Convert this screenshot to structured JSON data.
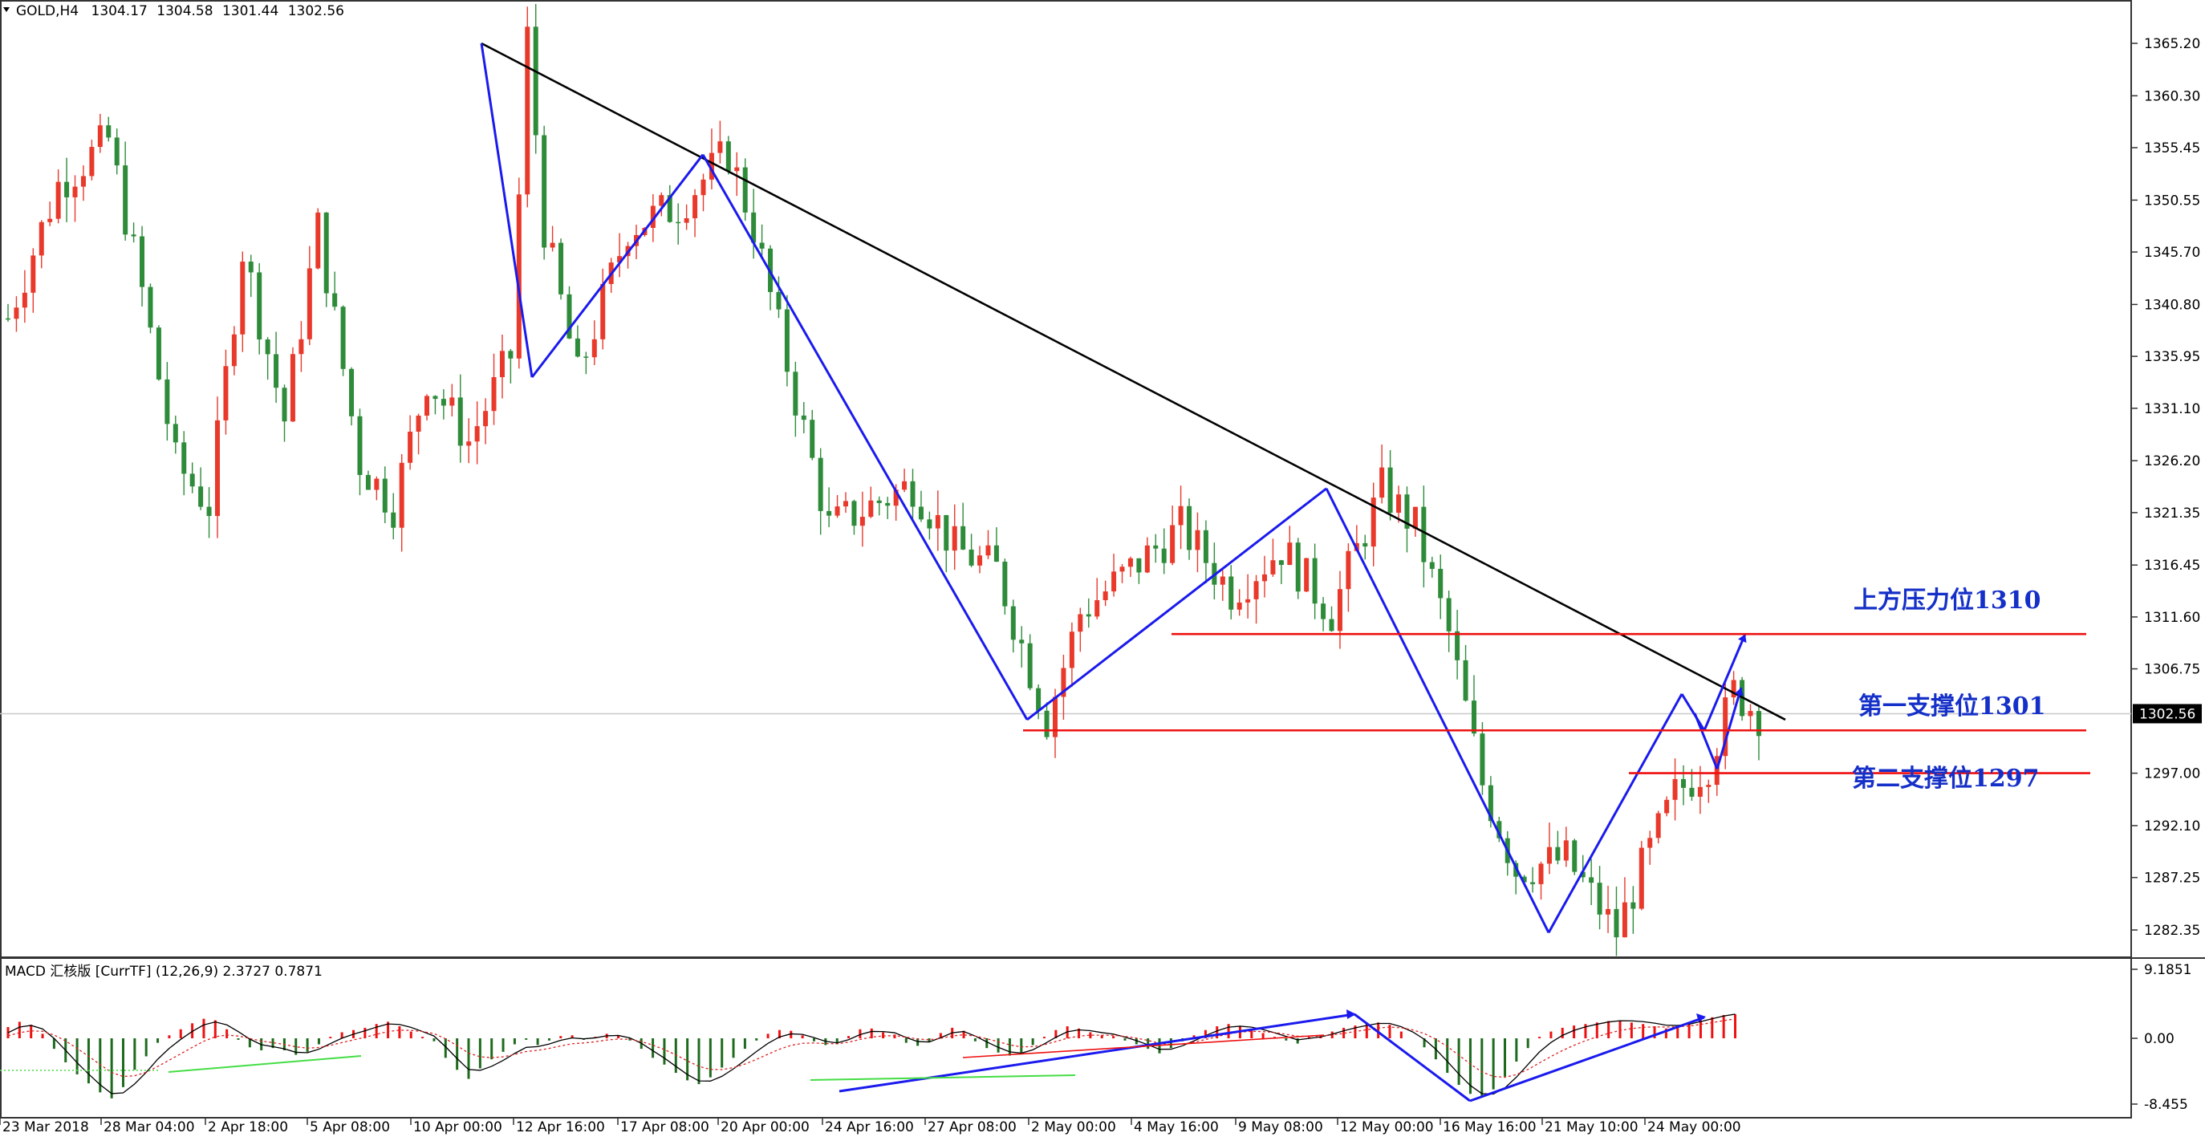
{
  "header": {
    "symbol": "GOLD,H4",
    "open": "1304.17",
    "high": "1304.58",
    "low": "1301.44",
    "close": "1302.56"
  },
  "macd": {
    "label": "MACD 汇核版 [CurrTF] (12,26,9) 2.3727 0.7871",
    "ticks": [
      "9.1851",
      "0.00",
      "-8.455"
    ]
  },
  "colors": {
    "bull": "#e8392b",
    "bear": "#2e8b3a",
    "trend_black": "#000000",
    "pattern_blue": "#1a1aee",
    "level_red": "#ee1111",
    "annotation_text": "#1530c8",
    "macd_up": "#ee1111",
    "macd_down": "#1e6b1e",
    "divergence_green": "#44dd44"
  },
  "chart_data": {
    "type": "candlestick",
    "price_axis": {
      "min": 1282.35,
      "max": 1365.2,
      "ticks": [
        "1365.20",
        "1360.30",
        "1355.45",
        "1350.55",
        "1345.70",
        "1340.80",
        "1335.95",
        "1331.10",
        "1326.20",
        "1321.35",
        "1316.45",
        "1311.60",
        "1306.75",
        "1297.00",
        "1292.10",
        "1287.25",
        "1282.35"
      ],
      "current_price_label": "1302.56",
      "current_price": 1302.56
    },
    "time_axis": {
      "labels": [
        "23 Mar 2018",
        "28 Mar 04:00",
        "2 Apr 18:00",
        "5 Apr 08:00",
        "10 Apr 00:00",
        "12 Apr 16:00",
        "17 Apr 08:00",
        "20 Apr 00:00",
        "24 Apr 16:00",
        "27 Apr 08:00",
        "2 May 00:00",
        "4 May 16:00",
        "9 May 08:00",
        "12 May 00:00",
        "16 May 16:00",
        "21 May 10:00",
        "24 May 00:00"
      ],
      "bars_total": 200
    },
    "key_prices": {
      "start": 1339.5,
      "mar_high": 1356.2,
      "apr11_peak": 1365.7,
      "apr12_low": 1334.0,
      "apr18_high": 1355.0,
      "may1_low": 1302.0,
      "may10_high": 1323.6,
      "may21_low": 1282.1,
      "may24_high": 1304.6,
      "last_close": 1302.56
    },
    "annotations": [
      {
        "text": "上方压力位1310",
        "price": 1310
      },
      {
        "text": "第一支撑位1301",
        "price": 1301
      },
      {
        "text": "第二支撑位1297",
        "price": 1297
      }
    ],
    "trendline": {
      "from_price": 1365.2,
      "to_price": 1302.0
    },
    "pattern_points": [
      1365.2,
      1334.0,
      1354.8,
      1302.0,
      1323.6,
      1282.1,
      1304.4,
      1301.0,
      1310.0
    ],
    "macd_values": [
      1.5,
      2.2,
      1.8,
      0.6,
      -1.4,
      -3.2,
      -4.8,
      -6.0,
      -7.2,
      -8.0,
      -6.5,
      -4.2,
      -2.4,
      -0.6,
      0.4,
      1.2,
      2.0,
      2.6,
      2.4,
      1.2,
      -0.2,
      -1.2,
      -1.6,
      -1.3,
      -1.6,
      -2.2,
      -1.8,
      -0.8,
      0.2,
      0.8,
      1.1,
      1.4,
      1.9,
      2.2,
      1.6,
      0.9,
      0.2,
      -0.4,
      -2.6,
      -4.2,
      -5.4,
      -4.0,
      -2.8,
      -1.8,
      -0.8,
      -0.2,
      -0.9,
      -0.3,
      0.3,
      0.4,
      -0.2,
      0.2,
      0.6,
      0.4,
      -0.3,
      -1.4,
      -2.6,
      -3.5,
      -4.6,
      -5.6,
      -6.1,
      -5.2,
      -3.9,
      -2.6,
      -1.4,
      -0.3,
      0.6,
      1.1,
      1.0,
      0.4,
      -0.4,
      -0.9,
      -0.8,
      0.3,
      1.2,
      1.3,
      0.8,
      0.5,
      -0.6,
      -1.0,
      -0.5,
      0.7,
      1.4,
      1.0,
      -0.4,
      -1.3,
      -1.9,
      -2.3,
      -2.0,
      -0.9,
      0.2,
      1.1,
      1.6,
      1.3,
      0.8,
      0.4,
      0.3,
      -0.3,
      -0.8,
      -1.4,
      -2.0,
      -1.3,
      -0.4,
      0.4,
      1.1,
      1.6,
      1.9,
      1.6,
      1.2,
      0.7,
      0.2,
      -0.3,
      -0.7,
      0.2,
      0.4,
      0.9,
      1.4,
      1.7,
      1.9,
      2.1,
      1.8,
      0.9,
      0.0,
      -1.2,
      -2.8,
      -4.6,
      -6.2,
      -7.4,
      -7.9,
      -6.8,
      -5.1,
      -3.1,
      -1.3,
      0.2,
      0.9,
      1.4,
      1.7,
      1.9,
      2.1,
      2.3,
      2.3,
      2.1,
      1.9,
      1.6,
      1.3,
      1.5,
      1.9,
      2.4,
      2.8,
      3.1,
      3.2
    ]
  },
  "legend_hint": "MACD"
}
